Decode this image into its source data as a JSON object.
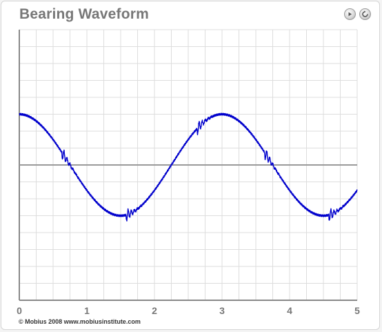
{
  "title": "Bearing Waveform",
  "footer": "© Mobius 2008 www.mobiusinstitute.com",
  "controls": {
    "play_icon": "play-icon",
    "reset_icon": "reset-icon"
  },
  "colors": {
    "waveform": "#0000cc",
    "zero_line": "#999999",
    "grid": "#dddddd",
    "axis": "#888888",
    "label": "#777777"
  },
  "chart_data": {
    "type": "line",
    "title": "Bearing Waveform",
    "xlabel": "",
    "ylabel": "",
    "xlim": [
      0,
      5
    ],
    "ylim": [
      -4,
      4
    ],
    "grid": true,
    "x_ticks": [
      0,
      1,
      2,
      3,
      4,
      5
    ],
    "x_tick_labels": [
      "0",
      "1",
      "2",
      "3",
      "4",
      "5"
    ],
    "series": [
      {
        "formula": "y = 1.5*cos(2*PI*x/3) + impact ripple near x = 0.65, 1.6, 2.65, 3.65, 4.6",
        "amplitude": 1.5,
        "period": 3,
        "impacts": [
          0.65,
          1.6,
          2.65,
          3.65,
          4.6
        ],
        "points": [
          [
            0,
            1.5
          ],
          [
            0.25,
            1.3
          ],
          [
            0.5,
            0.75
          ],
          [
            0.75,
            0.0
          ],
          [
            1.0,
            -0.75
          ],
          [
            1.25,
            -1.3
          ],
          [
            1.5,
            -1.5
          ],
          [
            1.75,
            -1.3
          ],
          [
            2.0,
            -0.75
          ],
          [
            2.25,
            0.0
          ],
          [
            2.5,
            0.75
          ],
          [
            2.75,
            1.3
          ],
          [
            3.0,
            1.5
          ],
          [
            3.25,
            1.3
          ],
          [
            3.5,
            0.75
          ],
          [
            3.75,
            0.0
          ],
          [
            4.0,
            -0.75
          ],
          [
            4.25,
            -1.3
          ],
          [
            4.5,
            -1.5
          ],
          [
            4.75,
            -1.3
          ],
          [
            5.0,
            -0.75
          ]
        ]
      }
    ]
  }
}
